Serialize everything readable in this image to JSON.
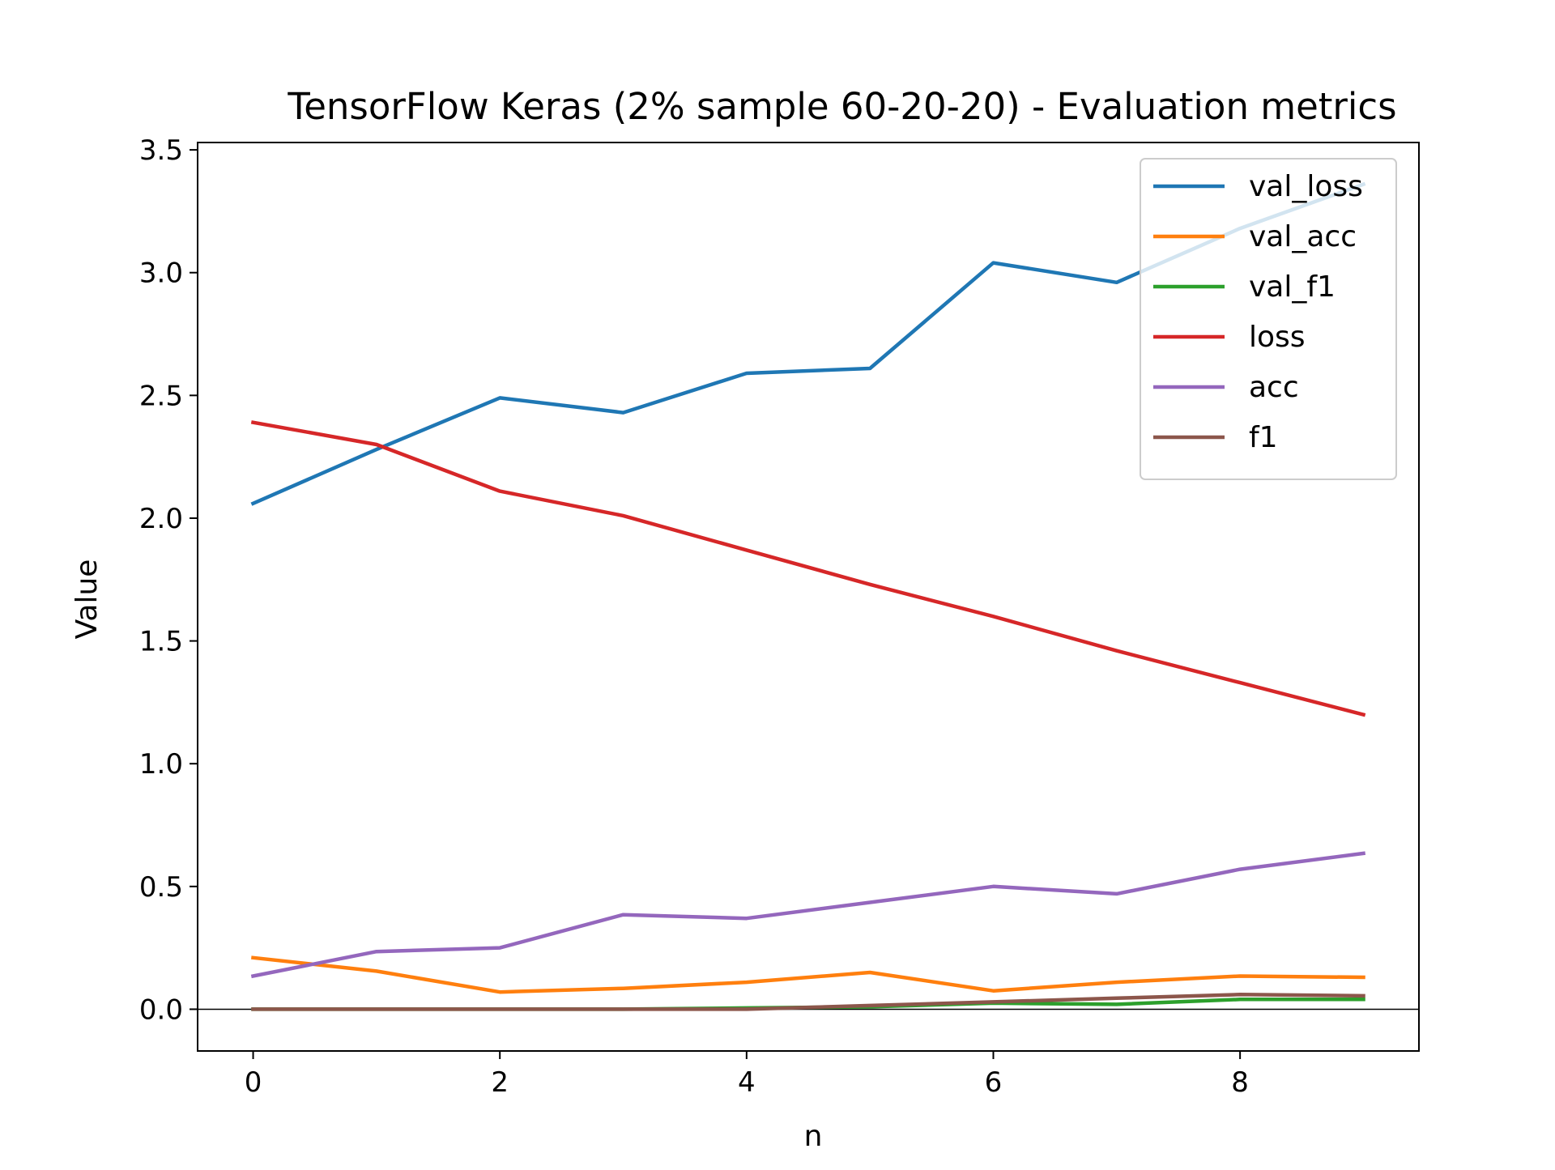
{
  "chart_data": {
    "type": "line",
    "title": "TensorFlow Keras (2% sample 60-20-20) - Evaluation metrics",
    "xlabel": "n",
    "ylabel": "Value",
    "xlim": [
      -0.45,
      9.45
    ],
    "ylim": [
      -0.17,
      3.53
    ],
    "xticks": [
      "0",
      "2",
      "4",
      "6",
      "8"
    ],
    "yticks": [
      "0.0",
      "0.5",
      "1.0",
      "1.5",
      "2.0",
      "2.5",
      "3.0",
      "3.5"
    ],
    "grid": false,
    "legend_position": "top-right",
    "x": [
      0,
      1,
      2,
      3,
      4,
      5,
      6,
      7,
      8,
      9
    ],
    "series": [
      {
        "name": "val_loss",
        "color": "#1f77b4",
        "values": [
          2.06,
          2.28,
          2.49,
          2.43,
          2.59,
          2.61,
          3.04,
          2.96,
          3.18,
          3.36
        ]
      },
      {
        "name": "val_acc",
        "color": "#ff7f0e",
        "values": [
          0.21,
          0.155,
          0.07,
          0.085,
          0.11,
          0.15,
          0.075,
          0.11,
          0.135,
          0.13
        ]
      },
      {
        "name": "val_f1",
        "color": "#2ca02c",
        "values": [
          0.0,
          0.0,
          0.0,
          0.0,
          0.005,
          0.01,
          0.025,
          0.02,
          0.04,
          0.04
        ]
      },
      {
        "name": "loss",
        "color": "#d62728",
        "values": [
          2.39,
          2.3,
          2.11,
          2.01,
          1.87,
          1.73,
          1.6,
          1.46,
          1.33,
          1.2
        ]
      },
      {
        "name": "acc",
        "color": "#9467bd",
        "values": [
          0.135,
          0.235,
          0.25,
          0.385,
          0.37,
          0.435,
          0.5,
          0.47,
          0.57,
          0.635
        ]
      },
      {
        "name": "f1",
        "color": "#8c564b",
        "values": [
          0.0,
          0.0,
          0.0,
          0.0,
          0.0,
          0.015,
          0.03,
          0.045,
          0.06,
          0.055
        ]
      }
    ],
    "reference_line": {
      "y": 0.0,
      "color": "#000000"
    }
  }
}
